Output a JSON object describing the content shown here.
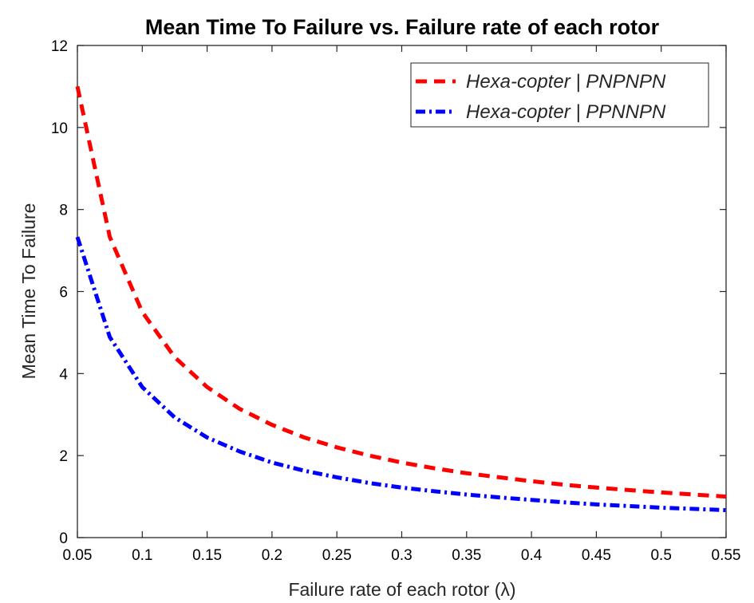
{
  "chart_data": {
    "type": "line",
    "title": "Mean Time To Failure vs. Failure rate of each rotor",
    "xlabel": "Failure rate of each rotor (λ)",
    "ylabel": "Mean Time To Failure",
    "xlim": [
      0.05,
      0.55
    ],
    "ylim": [
      0,
      12
    ],
    "xticks": [
      0.05,
      0.1,
      0.15,
      0.2,
      0.25,
      0.3,
      0.35,
      0.4,
      0.45,
      0.5,
      0.55
    ],
    "xtick_labels": [
      "0.05",
      "0.1",
      "0.15",
      "0.2",
      "0.25",
      "0.3",
      "0.35",
      "0.4",
      "0.45",
      "0.5",
      "0.55"
    ],
    "yticks": [
      0,
      2,
      4,
      6,
      8,
      10,
      12
    ],
    "ytick_labels": [
      "0",
      "2",
      "4",
      "6",
      "8",
      "10",
      "12"
    ],
    "grid": false,
    "legend_position": "top-right",
    "x": [
      0.05,
      0.075,
      0.1,
      0.125,
      0.15,
      0.175,
      0.2,
      0.225,
      0.25,
      0.275,
      0.3,
      0.325,
      0.35,
      0.375,
      0.4,
      0.425,
      0.45,
      0.475,
      0.5,
      0.525,
      0.55
    ],
    "series": [
      {
        "name": "Hexa-copter | PNPNPN",
        "color": "#ff0000",
        "line_style": "dashed",
        "values": [
          11.0,
          7.33,
          5.5,
          4.4,
          3.67,
          3.14,
          2.75,
          2.44,
          2.2,
          2.0,
          1.83,
          1.69,
          1.57,
          1.47,
          1.375,
          1.29,
          1.22,
          1.16,
          1.1,
          1.05,
          1.0
        ]
      },
      {
        "name": "Hexa-copter | PPNNPN",
        "color": "#0000ff",
        "line_style": "dash-dot",
        "values": [
          7.33,
          4.89,
          3.67,
          2.93,
          2.44,
          2.1,
          1.83,
          1.63,
          1.47,
          1.33,
          1.22,
          1.13,
          1.05,
          0.98,
          0.92,
          0.86,
          0.81,
          0.77,
          0.73,
          0.7,
          0.67
        ]
      }
    ]
  }
}
